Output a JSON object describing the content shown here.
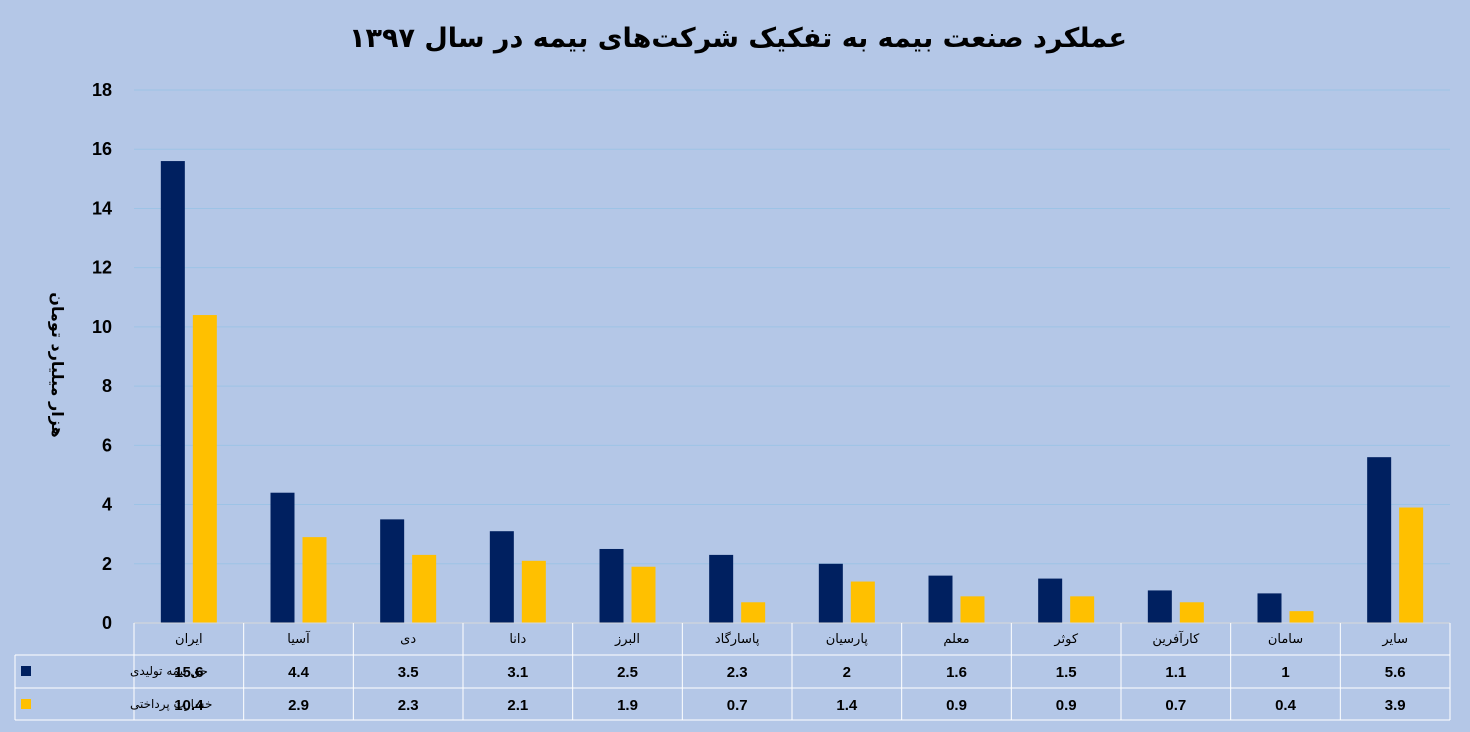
{
  "chart_data": {
    "type": "bar",
    "title": "عملکرد صنعت بیمه به تفکیک شرکت‌های بیمه در سال ۱۳۹۷",
    "ylabel": "هزار میلیارد تومان",
    "xlabel": "",
    "ylim": [
      0,
      18
    ],
    "yticks": [
      0,
      2,
      4,
      6,
      8,
      10,
      12,
      14,
      16,
      18
    ],
    "grid": true,
    "legend_placement": "data-table-left",
    "categories": [
      "ایران",
      "آسیا",
      "دی",
      "دانا",
      "البرز",
      "پاسارگاد",
      "پارسیان",
      "معلم",
      "کوثر",
      "کارآفرین",
      "سامان",
      "سایر"
    ],
    "series": [
      {
        "name": "حق بیمه تولیدی",
        "color": "#002060",
        "values": [
          15.6,
          4.4,
          3.5,
          3.1,
          2.5,
          2.3,
          2,
          1.6,
          1.5,
          1.1,
          1,
          5.6
        ]
      },
      {
        "name": "خسارت پرداختی",
        "color": "#ffc000",
        "values": [
          10.4,
          2.9,
          2.3,
          2.1,
          1.9,
          0.7,
          1.4,
          0.9,
          0.9,
          0.7,
          0.4,
          3.9
        ]
      }
    ],
    "data_table": {
      "rows": [
        [
          "15.6",
          "4.4",
          "3.5",
          "3.1",
          "2.5",
          "2.3",
          "2",
          "1.6",
          "1.5",
          "1.1",
          "1",
          "5.6"
        ],
        [
          "10.4",
          "2.9",
          "2.3",
          "2.1",
          "1.9",
          "0.7",
          "1.4",
          "0.9",
          "0.9",
          "0.7",
          "0.4",
          "3.9"
        ]
      ]
    }
  }
}
